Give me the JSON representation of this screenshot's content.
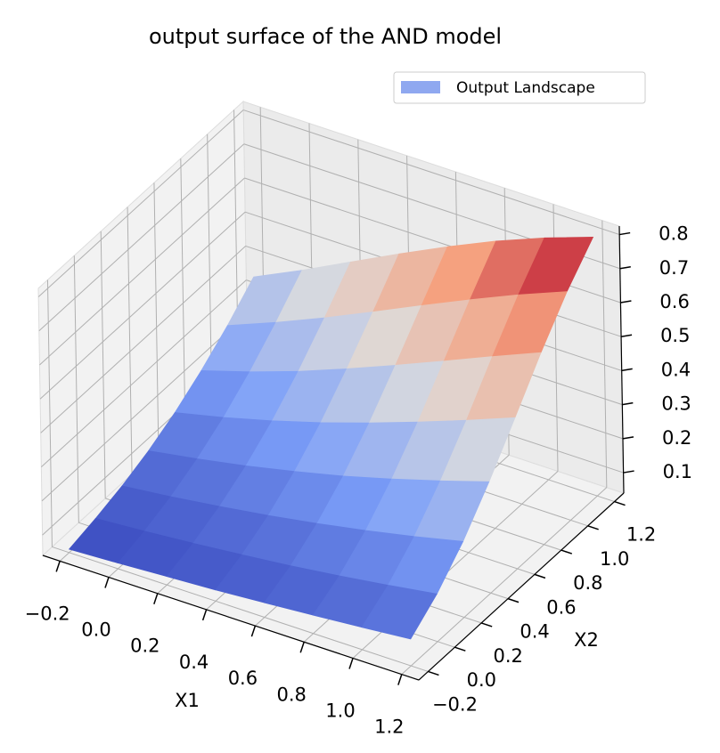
{
  "chart_data": {
    "type": "surface3d",
    "title": "output surface of the AND model",
    "xlabel": "X1",
    "ylabel": "X2",
    "legend": "upper right",
    "series": [
      {
        "name": "Output Landscape",
        "color": "#8fa8f0",
        "colormap": "coolwarm",
        "x": [
          -0.2,
          0,
          0.2,
          0.4,
          0.6,
          0.8,
          1.0,
          1.2
        ],
        "y": [
          -0.2,
          0,
          0.2,
          0.4,
          0.6,
          0.8,
          1.0,
          1.2
        ],
        "z": [
          [
            0.05,
            0.057,
            0.065,
            0.073,
            0.083,
            0.094,
            0.106,
            0.119
          ],
          [
            0.069,
            0.079,
            0.091,
            0.105,
            0.12,
            0.138,
            0.158,
            0.18
          ],
          [
            0.093,
            0.109,
            0.128,
            0.149,
            0.173,
            0.2,
            0.23,
            0.263
          ],
          [
            0.125,
            0.149,
            0.176,
            0.207,
            0.241,
            0.28,
            0.322,
            0.367
          ],
          [
            0.166,
            0.199,
            0.237,
            0.279,
            0.326,
            0.376,
            0.429,
            0.484
          ],
          [
            0.218,
            0.262,
            0.311,
            0.366,
            0.424,
            0.484,
            0.545,
            0.604
          ],
          [
            0.279,
            0.336,
            0.397,
            0.462,
            0.528,
            0.593,
            0.655,
            0.712
          ],
          [
            0.351,
            0.418,
            0.49,
            0.561,
            0.63,
            0.694,
            0.751,
            0.801
          ]
        ]
      }
    ],
    "xlim": [
      -0.27,
      1.27
    ],
    "xticks": [
      {
        "value": -0.2,
        "label": "−0.2"
      },
      {
        "value": 0,
        "label": "0.0"
      },
      0.2,
      0.4,
      0.6,
      0.8,
      {
        "value": 1,
        "label": "1.0"
      },
      1.2
    ],
    "ylim": [
      -0.27,
      1.27
    ],
    "yticks": [
      {
        "value": -0.2,
        "label": "−0.2"
      },
      {
        "value": 0,
        "label": "0.0"
      },
      0.2,
      0.4,
      0.6,
      0.8,
      {
        "value": 1,
        "label": "1.0"
      },
      1.2
    ],
    "zlim": [
      0.04,
      0.825
    ],
    "zticks": [
      0.1,
      0.2,
      0.3,
      0.4,
      0.5,
      0.6,
      0.7,
      0.8
    ],
    "grid": true
  }
}
